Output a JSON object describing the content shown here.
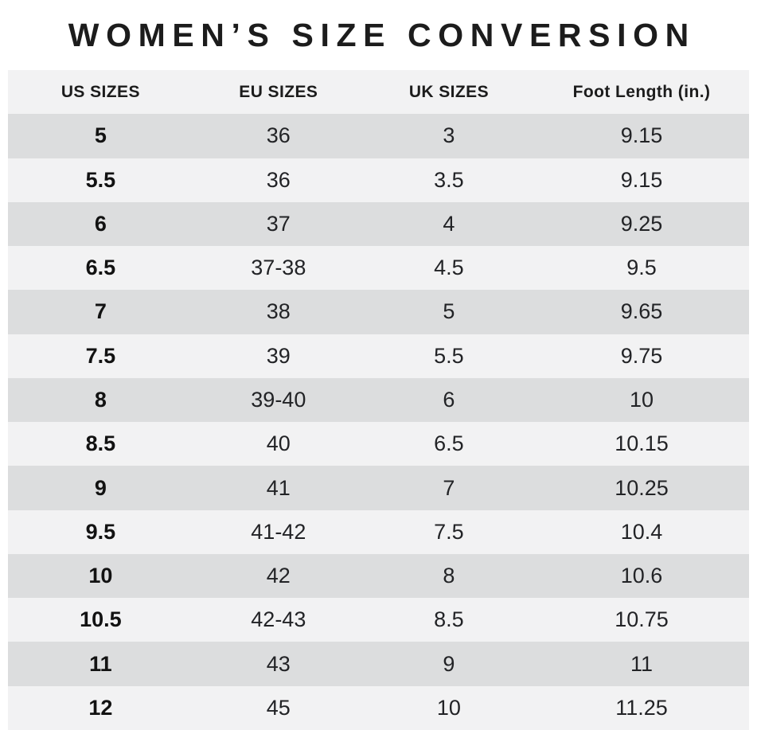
{
  "chart_data": {
    "type": "table",
    "title": "WOMEN’S SIZE CONVERSION",
    "columns": [
      "US SIZES",
      "EU SIZES",
      "UK SIZES",
      "Foot Length (in.)"
    ],
    "rows": [
      [
        "5",
        "36",
        "3",
        "9.15"
      ],
      [
        "5.5",
        "36",
        "3.5",
        "9.15"
      ],
      [
        "6",
        "37",
        "4",
        "9.25"
      ],
      [
        "6.5",
        "37-38",
        "4.5",
        "9.5"
      ],
      [
        "7",
        "38",
        "5",
        "9.65"
      ],
      [
        "7.5",
        "39",
        "5.5",
        "9.75"
      ],
      [
        "8",
        "39-40",
        "6",
        "10"
      ],
      [
        "8.5",
        "40",
        "6.5",
        "10.15"
      ],
      [
        "9",
        "41",
        "7",
        "10.25"
      ],
      [
        "9.5",
        "41-42",
        "7.5",
        "10.4"
      ],
      [
        "10",
        "42",
        "8",
        "10.6"
      ],
      [
        "10.5",
        "42-43",
        "8.5",
        "10.75"
      ],
      [
        "11",
        "43",
        "9",
        "11"
      ],
      [
        "12",
        "45",
        "10",
        "11.25"
      ]
    ]
  },
  "colors": {
    "background": "#ffffff",
    "row_dark": "#dcddde",
    "row_light": "#f2f2f3",
    "header_bg": "#f2f2f3",
    "text": "#1c1c1c"
  }
}
